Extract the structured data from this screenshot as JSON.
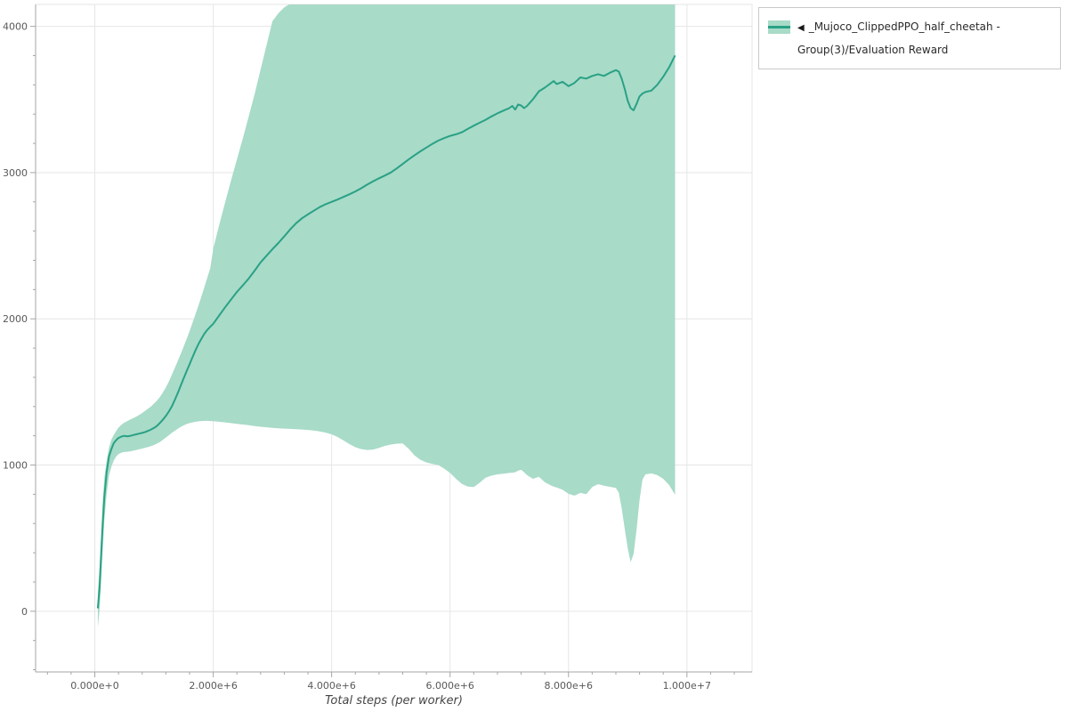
{
  "legend": {
    "marker": "◀",
    "label": "_Mujoco_ClippedPPO_half_cheetah - Group(3)/Evaluation Reward"
  },
  "chart_data": {
    "type": "line",
    "title": "",
    "xlabel": "Total steps (per worker)",
    "ylabel": "",
    "grid": true,
    "legend_position": "top-right-outside",
    "xlim": [
      -1000000,
      11100000
    ],
    "ylim": [
      -415,
      4150
    ],
    "x_tick_values": [
      0,
      2000000,
      4000000,
      6000000,
      8000000,
      10000000
    ],
    "x_tick_labels": [
      "0.000e+0",
      "2.000e+6",
      "4.000e+6",
      "6.000e+6",
      "8.000e+6",
      "1.000e+7"
    ],
    "y_tick_values": [
      0,
      1000,
      2000,
      3000,
      4000
    ],
    "y_tick_labels": [
      "0",
      "1000",
      "2000",
      "3000",
      "4000"
    ],
    "colors": {
      "grid": "#e6e6e6",
      "outline": "#e5e5e5",
      "axis": "#a6a6a6",
      "tick_label": "#595959",
      "axis_label": "#444444"
    },
    "series": [
      {
        "name": "_Mujoco_ClippedPPO_half_cheetah - Group(3)/Evaluation Reward",
        "color": "#29a185",
        "band_color": "#a8dbc8",
        "band_opacity": 1,
        "x": [
          50000,
          80000,
          100000,
          130000,
          160000,
          200000,
          240000,
          280000,
          320000,
          360000,
          400000,
          450000,
          500000,
          550000,
          600000,
          650000,
          700000,
          750000,
          800000,
          850000,
          900000,
          950000,
          1000000,
          1050000,
          1100000,
          1150000,
          1200000,
          1250000,
          1300000,
          1350000,
          1400000,
          1450000,
          1500000,
          1550000,
          1600000,
          1650000,
          1700000,
          1750000,
          1800000,
          1850000,
          1900000,
          1950000,
          2000000,
          2100000,
          2200000,
          2300000,
          2400000,
          2500000,
          2600000,
          2700000,
          2800000,
          2900000,
          3000000,
          3100000,
          3200000,
          3300000,
          3400000,
          3500000,
          3600000,
          3700000,
          3800000,
          3900000,
          4000000,
          4100000,
          4200000,
          4300000,
          4400000,
          4500000,
          4600000,
          4700000,
          4800000,
          4900000,
          5000000,
          5100000,
          5200000,
          5300000,
          5400000,
          5500000,
          5600000,
          5700000,
          5800000,
          5900000,
          6000000,
          6100000,
          6200000,
          6300000,
          6400000,
          6500000,
          6600000,
          6700000,
          6800000,
          6900000,
          7000000,
          7050000,
          7100000,
          7150000,
          7200000,
          7250000,
          7300000,
          7400000,
          7500000,
          7600000,
          7700000,
          7750000,
          7800000,
          7900000,
          8000000,
          8100000,
          8200000,
          8300000,
          8400000,
          8500000,
          8600000,
          8700000,
          8800000,
          8850000,
          8900000,
          8950000,
          9000000,
          9050000,
          9100000,
          9150000,
          9200000,
          9250000,
          9300000,
          9400000,
          9500000,
          9600000,
          9700000,
          9800000
        ],
        "mean": [
          20,
          160,
          330,
          570,
          780,
          950,
          1060,
          1110,
          1150,
          1170,
          1185,
          1195,
          1200,
          1197,
          1200,
          1205,
          1210,
          1215,
          1220,
          1226,
          1234,
          1243,
          1254,
          1268,
          1288,
          1310,
          1336,
          1366,
          1400,
          1444,
          1492,
          1542,
          1592,
          1641,
          1689,
          1737,
          1784,
          1828,
          1864,
          1898,
          1924,
          1946,
          1966,
          2022,
          2079,
          2131,
          2184,
          2229,
          2276,
          2330,
          2386,
          2432,
          2476,
          2519,
          2564,
          2612,
          2654,
          2688,
          2714,
          2740,
          2764,
          2784,
          2800,
          2816,
          2834,
          2852,
          2871,
          2893,
          2918,
          2940,
          2961,
          2980,
          3001,
          3029,
          3059,
          3090,
          3119,
          3146,
          3171,
          3196,
          3219,
          3236,
          3251,
          3262,
          3276,
          3299,
          3321,
          3341,
          3361,
          3384,
          3405,
          3424,
          3441,
          3456,
          3431,
          3466,
          3459,
          3441,
          3456,
          3501,
          3556,
          3581,
          3611,
          3626,
          3606,
          3621,
          3591,
          3613,
          3651,
          3643,
          3661,
          3673,
          3661,
          3683,
          3701,
          3691,
          3641,
          3571,
          3491,
          3441,
          3426,
          3471,
          3521,
          3541,
          3551,
          3561,
          3601,
          3656,
          3721,
          3801
        ],
        "lower": [
          -110,
          10,
          160,
          390,
          620,
          800,
          930,
          990,
          1030,
          1058,
          1075,
          1085,
          1090,
          1091,
          1094,
          1098,
          1103,
          1108,
          1113,
          1118,
          1123,
          1129,
          1137,
          1147,
          1158,
          1172,
          1188,
          1204,
          1220,
          1234,
          1248,
          1260,
          1271,
          1280,
          1287,
          1292,
          1296,
          1299,
          1301,
          1302,
          1302,
          1301,
          1300,
          1296,
          1292,
          1287,
          1282,
          1277,
          1272,
          1267,
          1262,
          1258,
          1254,
          1251,
          1249,
          1247,
          1245,
          1243,
          1240,
          1236,
          1230,
          1222,
          1210,
          1192,
          1168,
          1143,
          1122,
          1109,
          1103,
          1106,
          1117,
          1131,
          1140,
          1146,
          1148,
          1112,
          1066,
          1036,
          1018,
          1008,
          1000,
          976,
          946,
          906,
          871,
          853,
          849,
          879,
          914,
          928,
          936,
          941,
          946,
          948,
          951,
          961,
          968,
          951,
          931,
          906,
          919,
          883,
          861,
          853,
          846,
          831,
          803,
          791,
          809,
          801,
          849,
          869,
          859,
          851,
          843,
          811,
          701,
          561,
          431,
          336,
          391,
          561,
          761,
          901,
          936,
          943,
          931,
          906,
          863,
          796
        ],
        "upper": [
          130,
          300,
          480,
          730,
          910,
          1030,
          1120,
          1175,
          1205,
          1232,
          1256,
          1276,
          1291,
          1301,
          1311,
          1321,
          1331,
          1343,
          1356,
          1371,
          1386,
          1401,
          1421,
          1441,
          1466,
          1496,
          1531,
          1571,
          1616,
          1663,
          1711,
          1759,
          1809,
          1861,
          1916,
          1973,
          2031,
          2091,
          2153,
          2216,
          2281,
          2348,
          2480,
          2640,
          2795,
          2945,
          3090,
          3235,
          3385,
          3540,
          3705,
          3872,
          4035,
          4090,
          4130,
          4155,
          4175,
          4200,
          4250,
          4400,
          4400,
          4400,
          4400,
          4400,
          4400,
          4400,
          4400,
          4400,
          4400,
          4400,
          4400,
          4400,
          4400,
          4400,
          4400,
          4400,
          4400,
          4400,
          4400,
          4400,
          4400,
          4400,
          4400,
          4400,
          4400,
          4400,
          4400,
          4400,
          4400,
          4400,
          4400,
          4400,
          4400,
          4400,
          4400,
          4400,
          4400,
          4400,
          4400,
          4400,
          4400,
          4400,
          4400,
          4400,
          4400,
          4400,
          4400,
          4400,
          4400,
          4400,
          4400,
          4400,
          4400,
          4400,
          4400,
          4400,
          4400,
          4400,
          4400,
          4400,
          4400,
          4400,
          4400,
          4400,
          4400,
          4400,
          4400,
          4400,
          4400,
          4400
        ]
      }
    ]
  }
}
